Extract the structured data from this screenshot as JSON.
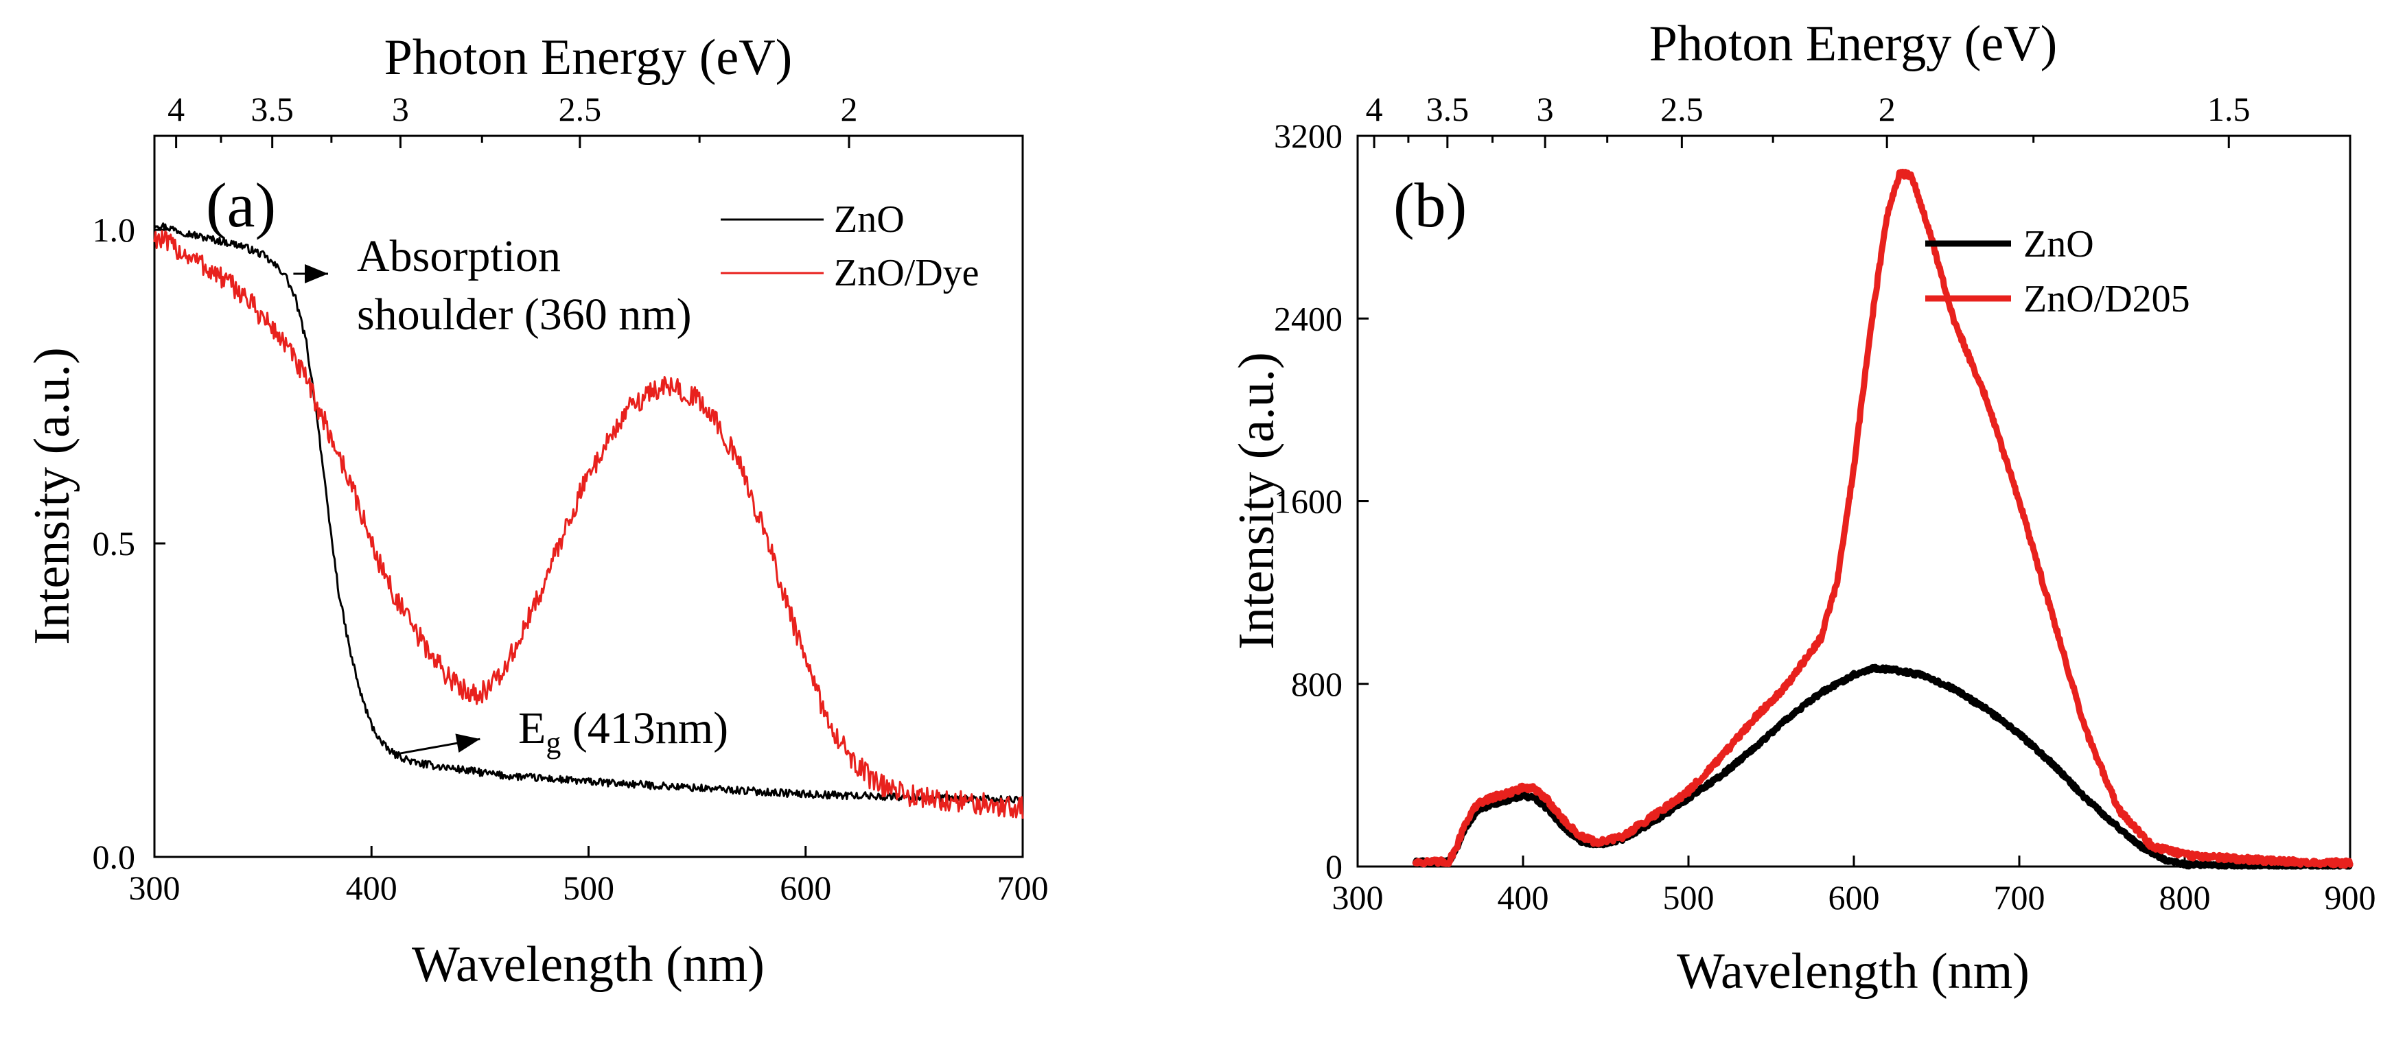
{
  "colors": {
    "zno": "#000000",
    "dye": "#e8211d"
  },
  "chart_data": [
    {
      "id": "a",
      "type": "line",
      "panel_label": "(a)",
      "title": "",
      "xlabel": "Wavelength (nm)",
      "ylabel": "Intensity (a.u.)",
      "top_xlabel": "Photon Energy (eV)",
      "xlim": [
        300,
        700
      ],
      "ylim": [
        0,
        1.15
      ],
      "x_ticks": [
        300,
        400,
        500,
        600,
        700
      ],
      "x_tick_labels": [
        "300",
        "400",
        "500",
        "600",
        "700"
      ],
      "y_ticks": [
        0,
        0.5,
        1.0
      ],
      "y_tick_labels": [
        "0.0",
        "0.5",
        "1.0"
      ],
      "top_ticks_ev": [
        4,
        3.5,
        3,
        2.5,
        2
      ],
      "top_tick_labels": [
        "4",
        "3.5",
        "3",
        "2.5",
        "2"
      ],
      "legend_position": "top-right",
      "series": [
        {
          "name": "ZnO",
          "color_key": "zno",
          "noise": 0.006,
          "points": [
            [
              300,
              1.01
            ],
            [
              320,
              0.99
            ],
            [
              340,
              0.975
            ],
            [
              350,
              0.96
            ],
            [
              360,
              0.93
            ],
            [
              365,
              0.89
            ],
            [
              370,
              0.82
            ],
            [
              375,
              0.7
            ],
            [
              380,
              0.55
            ],
            [
              385,
              0.42
            ],
            [
              390,
              0.33
            ],
            [
              395,
              0.26
            ],
            [
              400,
              0.21
            ],
            [
              405,
              0.18
            ],
            [
              410,
              0.165
            ],
            [
              420,
              0.15
            ],
            [
              440,
              0.14
            ],
            [
              460,
              0.13
            ],
            [
              500,
              0.12
            ],
            [
              550,
              0.11
            ],
            [
              600,
              0.1
            ],
            [
              650,
              0.095
            ],
            [
              700,
              0.09
            ]
          ]
        },
        {
          "name": "ZnO/Dye",
          "color_key": "dye",
          "noise": 0.018,
          "points": [
            [
              300,
              0.99
            ],
            [
              320,
              0.95
            ],
            [
              340,
              0.9
            ],
            [
              360,
              0.82
            ],
            [
              370,
              0.76
            ],
            [
              380,
              0.68
            ],
            [
              390,
              0.6
            ],
            [
              400,
              0.5
            ],
            [
              410,
              0.42
            ],
            [
              420,
              0.36
            ],
            [
              430,
              0.31
            ],
            [
              440,
              0.27
            ],
            [
              450,
              0.26
            ],
            [
              460,
              0.29
            ],
            [
              470,
              0.36
            ],
            [
              480,
              0.44
            ],
            [
              490,
              0.53
            ],
            [
              500,
              0.61
            ],
            [
              510,
              0.67
            ],
            [
              520,
              0.72
            ],
            [
              530,
              0.745
            ],
            [
              540,
              0.75
            ],
            [
              550,
              0.73
            ],
            [
              560,
              0.69
            ],
            [
              570,
              0.62
            ],
            [
              580,
              0.53
            ],
            [
              590,
              0.42
            ],
            [
              600,
              0.31
            ],
            [
              610,
              0.22
            ],
            [
              620,
              0.16
            ],
            [
              630,
              0.125
            ],
            [
              640,
              0.105
            ],
            [
              660,
              0.09
            ],
            [
              680,
              0.085
            ],
            [
              700,
              0.08
            ]
          ]
        }
      ],
      "annotations": [
        {
          "line1": "Absorption",
          "line2": "shoulder (360 nm)",
          "arrow_from": [
            364,
            0.93
          ],
          "arrow_to": [
            380,
            0.93
          ]
        },
        {
          "text_main": "E",
          "text_sub": "g",
          "text_rest": " (413nm)",
          "arrow_from": [
            413,
            0.165
          ],
          "arrow_to": [
            450,
            0.188
          ]
        }
      ]
    },
    {
      "id": "b",
      "type": "line",
      "panel_label": "(b)",
      "title": "",
      "xlabel": "Wavelength (nm)",
      "ylabel": "Intensity (a.u.)",
      "top_xlabel": "Photon Energy (eV)",
      "xlim": [
        300,
        900
      ],
      "ylim": [
        0,
        3200
      ],
      "x_ticks": [
        300,
        400,
        500,
        600,
        700,
        800,
        900
      ],
      "x_tick_labels": [
        "300",
        "400",
        "500",
        "600",
        "700",
        "800",
        "900"
      ],
      "y_ticks": [
        0,
        800,
        1600,
        2400,
        3200
      ],
      "y_tick_labels": [
        "0",
        "800",
        "1600",
        "2400",
        "3200"
      ],
      "top_ticks_ev": [
        4,
        3.5,
        3,
        2.5,
        2,
        1.5
      ],
      "top_tick_labels": [
        "4",
        "3.5",
        "3",
        "2.5",
        "2",
        "1.5"
      ],
      "legend_position": "top-right",
      "series": [
        {
          "name": "ZnO",
          "color_key": "zno",
          "noise": 8,
          "points": [
            [
              335,
              20
            ],
            [
              355,
              20
            ],
            [
              360,
              80
            ],
            [
              365,
              170
            ],
            [
              372,
              240
            ],
            [
              380,
              270
            ],
            [
              390,
              290
            ],
            [
              400,
              310
            ],
            [
              407,
              300
            ],
            [
              415,
              250
            ],
            [
              425,
              170
            ],
            [
              435,
              110
            ],
            [
              445,
              95
            ],
            [
              460,
              120
            ],
            [
              480,
              200
            ],
            [
              500,
              300
            ],
            [
              520,
              400
            ],
            [
              540,
              520
            ],
            [
              560,
              650
            ],
            [
              580,
              760
            ],
            [
              600,
              840
            ],
            [
              612,
              870
            ],
            [
              625,
              860
            ],
            [
              640,
              840
            ],
            [
              660,
              780
            ],
            [
              680,
              690
            ],
            [
              700,
              580
            ],
            [
              720,
              450
            ],
            [
              740,
              300
            ],
            [
              760,
              170
            ],
            [
              775,
              80
            ],
            [
              790,
              25
            ],
            [
              800,
              8
            ],
            [
              840,
              5
            ],
            [
              900,
              5
            ]
          ]
        },
        {
          "name": "ZnO/D205",
          "color_key": "dye",
          "noise": 12,
          "points": [
            [
              335,
              20
            ],
            [
              355,
              20
            ],
            [
              360,
              90
            ],
            [
              365,
              190
            ],
            [
              372,
              270
            ],
            [
              380,
              300
            ],
            [
              390,
              320
            ],
            [
              400,
              345
            ],
            [
              407,
              340
            ],
            [
              415,
              290
            ],
            [
              425,
              200
            ],
            [
              435,
              130
            ],
            [
              445,
              105
            ],
            [
              460,
              130
            ],
            [
              480,
              230
            ],
            [
              500,
              330
            ],
            [
              520,
              480
            ],
            [
              540,
              650
            ],
            [
              560,
              800
            ],
            [
              580,
              1000
            ],
            [
              590,
              1250
            ],
            [
              600,
              1750
            ],
            [
              610,
              2350
            ],
            [
              620,
              2850
            ],
            [
              628,
              3040
            ],
            [
              635,
              3020
            ],
            [
              645,
              2800
            ],
            [
              660,
              2400
            ],
            [
              680,
              2050
            ],
            [
              700,
              1600
            ],
            [
              720,
              1100
            ],
            [
              740,
              600
            ],
            [
              760,
              250
            ],
            [
              780,
              90
            ],
            [
              800,
              50
            ],
            [
              840,
              30
            ],
            [
              870,
              20
            ],
            [
              900,
              15
            ]
          ]
        }
      ],
      "annotations": []
    }
  ]
}
